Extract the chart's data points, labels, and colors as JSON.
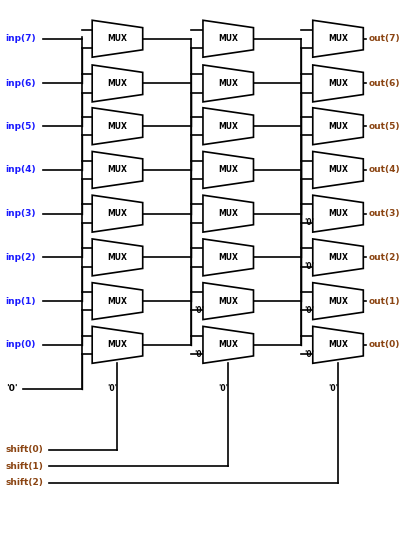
{
  "figsize": [
    4.08,
    5.41
  ],
  "dpi": 100,
  "bg_color": "#ffffff",
  "text_color": "#000000",
  "label_color": "#1a1aff",
  "shift_color": "#8B4513",
  "out_color": "#8B4513",
  "mux_fill": "#ffffff",
  "mux_edge": "#000000",
  "line_color": "#000000",
  "inp_labels": [
    "inp(7)",
    "inp(6)",
    "inp(5)",
    "inp(4)",
    "inp(3)",
    "inp(2)",
    "inp(1)",
    "inp(0)"
  ],
  "out_labels": [
    "out(7)",
    "out(6)",
    "out(5)",
    "out(4)",
    "out(3)",
    "out(2)",
    "out(1)",
    "out(0)"
  ],
  "shift_labels": [
    "shift(0)",
    "shift(1)",
    "shift(2)"
  ]
}
